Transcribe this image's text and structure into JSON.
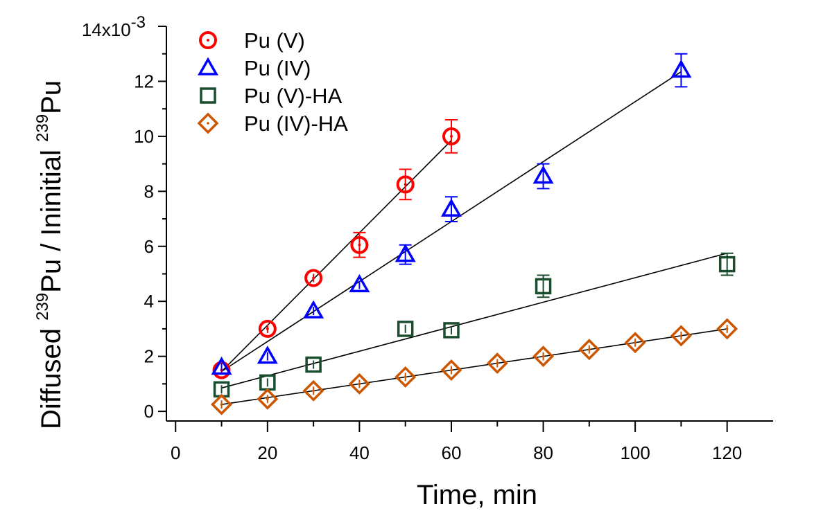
{
  "chart_data": {
    "type": "scatter",
    "xlabel": "Time, min",
    "ylabel": {
      "parts": [
        "Diffused ",
        "239",
        "Pu / Ininitial ",
        "239",
        "Pu"
      ]
    },
    "y_multiplier_label": "14x10",
    "y_multiplier_exponent": "-3",
    "xlim": [
      -2,
      130
    ],
    "ylim": [
      -0.35,
      14
    ],
    "x_ticks": [
      0,
      20,
      40,
      60,
      80,
      100,
      120
    ],
    "x_tick_labels": [
      "0",
      "20",
      "40",
      "60",
      "80",
      "100",
      "120"
    ],
    "y_ticks": [
      0,
      2,
      4,
      6,
      8,
      10,
      12,
      14
    ],
    "y_tick_labels": [
      "0",
      "2",
      "4",
      "6",
      "8",
      "10",
      "12",
      ""
    ],
    "series": [
      {
        "name": "Pu (V)",
        "color": "#ff0000",
        "marker": "circle",
        "x": [
          10,
          20,
          30,
          40,
          50,
          60
        ],
        "y": [
          1.5,
          3.0,
          4.85,
          6.05,
          8.25,
          10.0
        ],
        "err": [
          0.15,
          0.25,
          0.3,
          0.45,
          0.55,
          0.6
        ],
        "fit": {
          "x": [
            10,
            60
          ],
          "y": [
            1.45,
            9.85
          ]
        }
      },
      {
        "name": "Pu (IV)",
        "color": "#0000ff",
        "marker": "triangle",
        "x": [
          10,
          20,
          30,
          40,
          50,
          60,
          80,
          110
        ],
        "y": [
          1.6,
          2.0,
          3.65,
          4.6,
          5.7,
          7.35,
          8.55,
          12.4
        ],
        "err": [
          0.15,
          0.15,
          0.25,
          0.3,
          0.35,
          0.45,
          0.45,
          0.6
        ],
        "fit": {
          "x": [
            10,
            110
          ],
          "y": [
            1.45,
            12.35
          ]
        }
      },
      {
        "name": "Pu (V)-HA",
        "color": "#1a4d2e",
        "marker": "square",
        "x": [
          10,
          20,
          30,
          50,
          60,
          80,
          120
        ],
        "y": [
          0.8,
          1.05,
          1.7,
          3.0,
          2.95,
          4.55,
          5.35
        ],
        "err": [
          0.15,
          0.15,
          0.15,
          0.2,
          0.2,
          0.4,
          0.4
        ],
        "fit": {
          "x": [
            10,
            120
          ],
          "y": [
            0.85,
            5.75
          ]
        }
      },
      {
        "name": "Pu (IV)-HA",
        "color": "#cc5500",
        "marker": "diamond",
        "x": [
          10,
          20,
          30,
          40,
          50,
          60,
          70,
          80,
          90,
          100,
          110,
          120
        ],
        "y": [
          0.25,
          0.45,
          0.75,
          1.0,
          1.25,
          1.5,
          1.75,
          2.0,
          2.25,
          2.5,
          2.75,
          3.0
        ],
        "err": [
          0.05,
          0.05,
          0.05,
          0.05,
          0.05,
          0.05,
          0.05,
          0.05,
          0.05,
          0.05,
          0.05,
          0.05
        ],
        "fit": {
          "x": [
            10,
            120
          ],
          "y": [
            0.25,
            3.0
          ]
        }
      }
    ],
    "legend_position": "top-left"
  }
}
